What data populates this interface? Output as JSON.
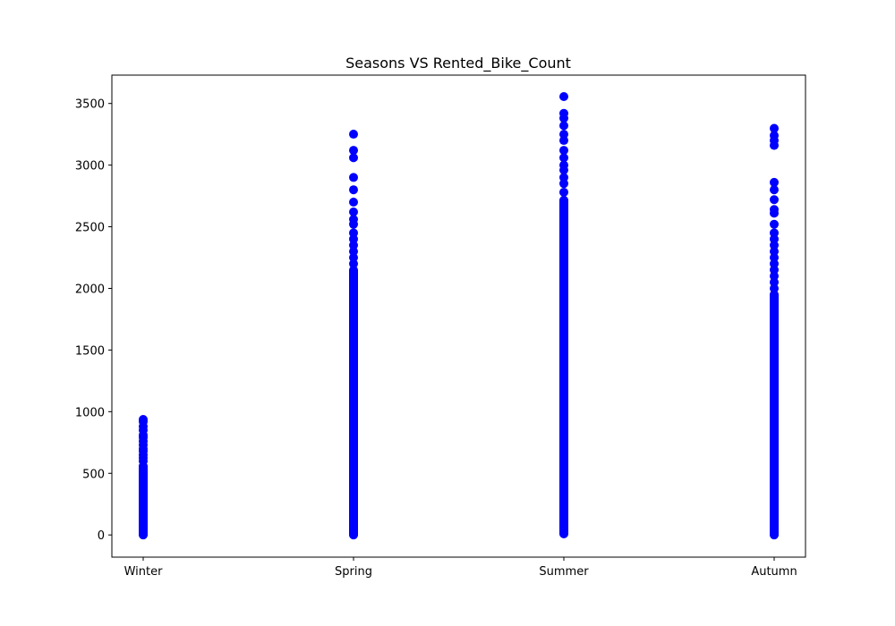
{
  "chart_data": {
    "type": "scatter",
    "title": "Seasons VS Rented_Bike_Count",
    "xlabel": "",
    "ylabel": "",
    "categories": [
      "Winter",
      "Spring",
      "Summer",
      "Autumn"
    ],
    "ylim": [
      -180,
      3730
    ],
    "yticks": [
      0,
      500,
      1000,
      1500,
      2000,
      2500,
      3000,
      3500
    ],
    "grid": false,
    "legend": "none",
    "marker_color": "#0000ff",
    "series": [
      {
        "category": "Winter",
        "min": 0,
        "dense_max": 560,
        "sparse_values": [
          600,
          625,
          650,
          680,
          700,
          730,
          760,
          790,
          810,
          850,
          880,
          920,
          937
        ]
      },
      {
        "category": "Spring",
        "min": 0,
        "dense_max": 2150,
        "sparse_values": [
          2200,
          2250,
          2300,
          2350,
          2400,
          2450,
          2520,
          2560,
          2620,
          2700,
          2800,
          2900,
          3060,
          3120,
          3251
        ]
      },
      {
        "category": "Summer",
        "min": 9,
        "dense_max": 2720,
        "sparse_values": [
          2780,
          2850,
          2900,
          2960,
          3000,
          3060,
          3120,
          3200,
          3250,
          3320,
          3380,
          3420,
          3556
        ]
      },
      {
        "category": "Autumn",
        "min": 0,
        "dense_max": 1950,
        "sparse_values": [
          2000,
          2050,
          2100,
          2150,
          2200,
          2250,
          2300,
          2350,
          2400,
          2450,
          2520,
          2610,
          2640,
          2720,
          2800,
          2860,
          3160,
          3200,
          3240,
          3298
        ]
      }
    ]
  }
}
